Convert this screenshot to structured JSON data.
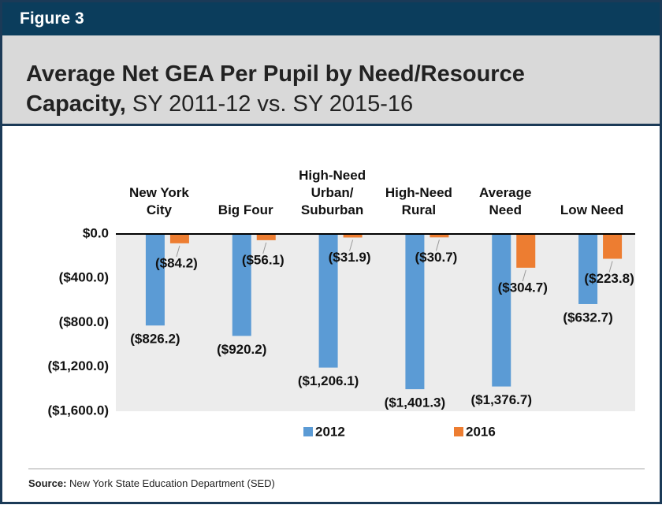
{
  "figure_label": "Figure 3",
  "source_label": "Source:",
  "source": "New York State Education Department (SED)",
  "chart_data": {
    "type": "bar",
    "title": "Average Net GEA Per Pupil by Need/Resource Capacity,",
    "subtitle": "SY 2011-12 vs. SY 2015-16",
    "categories": [
      "New York City",
      "Big Four",
      "High-Need Urban/ Suburban",
      "High-Need Rural",
      "Average Need",
      "Low Need"
    ],
    "series": [
      {
        "name": "2012",
        "color": "#5b9bd5",
        "values": [
          -826.2,
          -920.2,
          -1206.1,
          -1401.3,
          -1376.7,
          -632.7
        ],
        "value_labels": [
          "($826.2)",
          "($920.2)",
          "($1,206.1)",
          "($1,401.3)",
          "($1,376.7)",
          "($632.7)"
        ]
      },
      {
        "name": "2016",
        "color": "#ed7d31",
        "values": [
          -84.2,
          -56.1,
          -31.9,
          -30.7,
          -304.7,
          -223.8
        ],
        "value_labels": [
          "($84.2)",
          "($56.1)",
          "($31.9)",
          "($30.7)",
          "($304.7)",
          "($223.8)"
        ]
      }
    ],
    "ylim": [
      -1600,
      0
    ],
    "yticks": [
      {
        "value": 0,
        "label": "$0.0"
      },
      {
        "value": -400,
        "label": "($400.0)"
      },
      {
        "value": -800,
        "label": "($800.0)"
      },
      {
        "value": -1200,
        "label": "($1,200.0)"
      },
      {
        "value": -1600,
        "label": "($1,600.0)"
      }
    ],
    "grid": false,
    "legend": "bottom"
  }
}
